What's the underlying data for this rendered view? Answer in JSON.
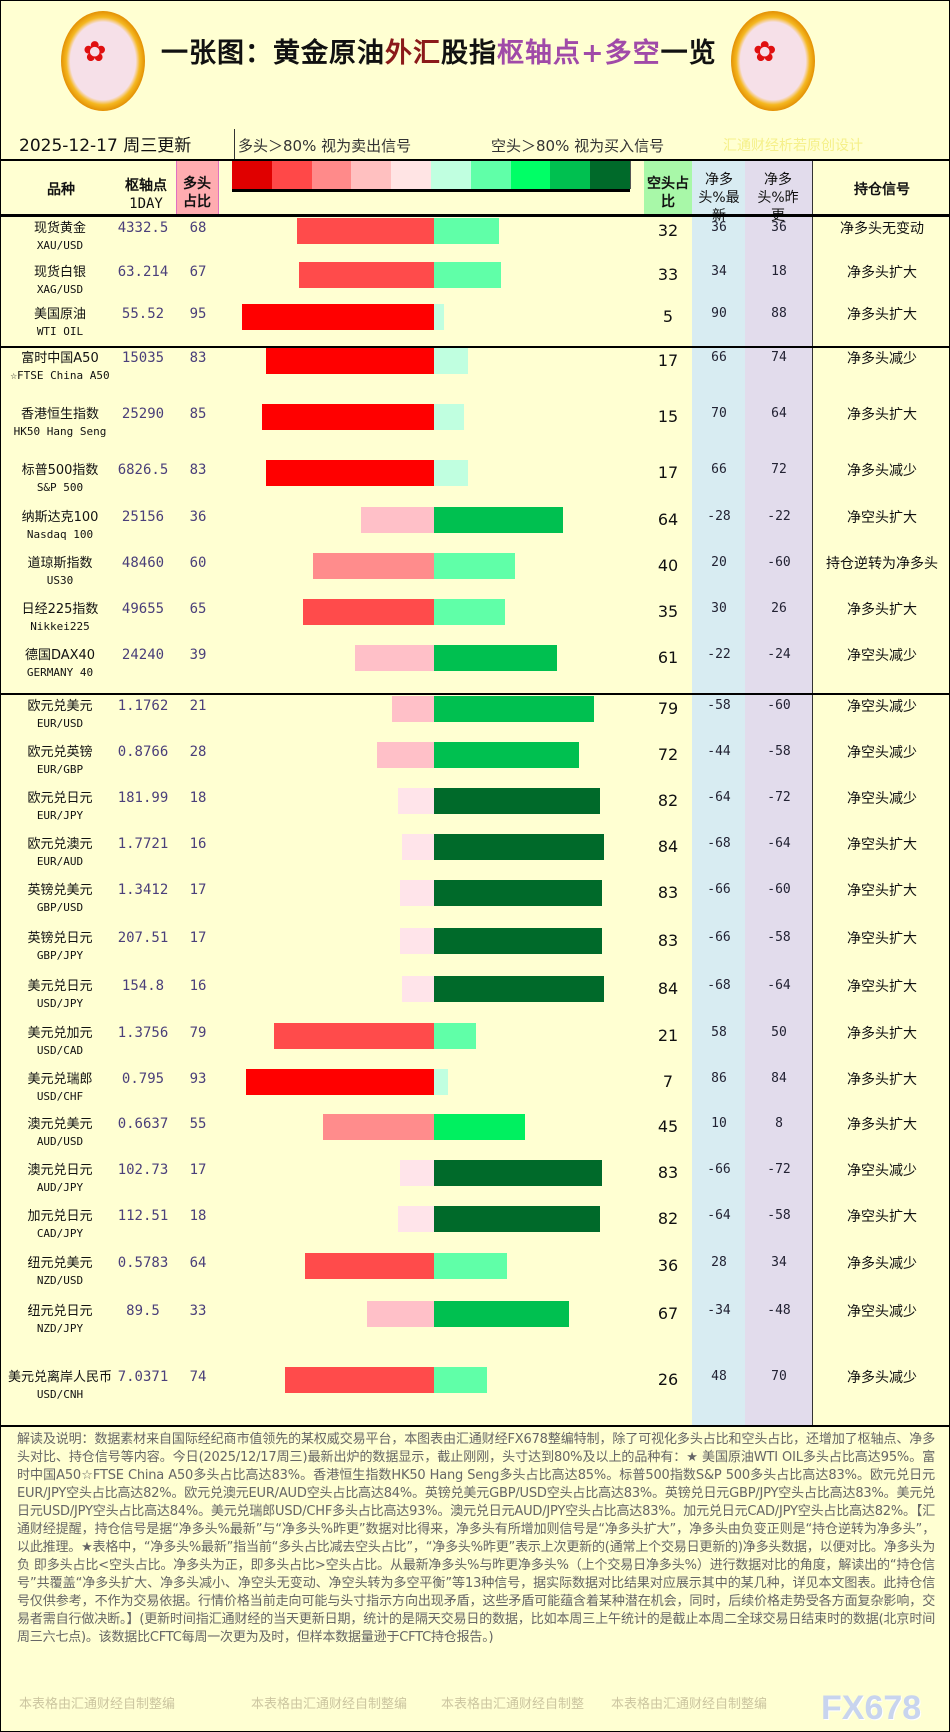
{
  "header": {
    "title_parts": [
      {
        "text": "一张图：黄金原油",
        "color": "#111111"
      },
      {
        "text": "外汇",
        "color": "#8b1a1a"
      },
      {
        "text": "股指",
        "color": "#111111"
      },
      {
        "text": "枢轴点+多空",
        "color": "#a04aa8"
      },
      {
        "text": "一览",
        "color": "#111111"
      }
    ],
    "date": "2025-12-17  周三更新",
    "legend_long": "多头＞80% 视为卖出信号",
    "legend_short": "空头＞80% 视为买入信号",
    "credit": "汇通财经析若原创设计",
    "legend_colors": [
      "#e00000",
      "#ff4848",
      "#ff8a8a",
      "#ffc0c0",
      "#ffe4e4",
      "#c0ffe0",
      "#60ffa8",
      "#00ff66",
      "#00c050",
      "#006a2a"
    ]
  },
  "columns": {
    "name": "品种",
    "pivot": "枢轴点",
    "pivot_sub": "1DAY",
    "long": "多头占比",
    "short": "空头占比",
    "net_latest": "净多头%最新",
    "net_prev": "净多头%昨更",
    "signal": "持仓信号"
  },
  "rows": [
    {
      "name": "现货黄金",
      "code": "XAU/USD",
      "pivot": "4332.5",
      "long": 68,
      "short": 32,
      "net": 36,
      "prev": 36,
      "signal": "净多头无变动"
    },
    {
      "name": "现货白银",
      "code": "XAG/USD",
      "pivot": "63.214",
      "long": 67,
      "short": 33,
      "net": 34,
      "prev": 18,
      "signal": "净多头扩大"
    },
    {
      "name": "美国原油",
      "code": "WTI OIL",
      "pivot": "55.52",
      "long": 95,
      "short": 5,
      "net": 90,
      "prev": 88,
      "signal": "净多头扩大"
    },
    {
      "name": "富时中国A50",
      "code": "☆FTSE China A50",
      "pivot": "15035",
      "long": 83,
      "short": 17,
      "net": 66,
      "prev": 74,
      "signal": "净多头减少"
    },
    {
      "name": "香港恒生指数",
      "code": "HK50 Hang Seng",
      "pivot": "25290",
      "long": 85,
      "short": 15,
      "net": 70,
      "prev": 64,
      "signal": "净多头扩大"
    },
    {
      "name": "标普500指数",
      "code": "S&P 500",
      "pivot": "6826.5",
      "long": 83,
      "short": 17,
      "net": 66,
      "prev": 72,
      "signal": "净多头减少"
    },
    {
      "name": "纳斯达克100",
      "code": "Nasdaq 100",
      "pivot": "25156",
      "long": 36,
      "short": 64,
      "net": -28,
      "prev": -22,
      "signal": "净空头扩大"
    },
    {
      "name": "道琼斯指数",
      "code": "US30",
      "pivot": "48460",
      "long": 60,
      "short": 40,
      "net": 20,
      "prev": -60,
      "signal": "持仓逆转为净多头"
    },
    {
      "name": "日经225指数",
      "code": "Nikkei225",
      "pivot": "49655",
      "long": 65,
      "short": 35,
      "net": 30,
      "prev": 26,
      "signal": "净多头扩大"
    },
    {
      "name": "德国DAX40",
      "code": "GERMANY 40",
      "pivot": "24240",
      "long": 39,
      "short": 61,
      "net": -22,
      "prev": -24,
      "signal": "净空头减少"
    },
    {
      "name": "欧元兑美元",
      "code": "EUR/USD",
      "pivot": "1.1762",
      "long": 21,
      "short": 79,
      "net": -58,
      "prev": -60,
      "signal": "净空头减少"
    },
    {
      "name": "欧元兑英镑",
      "code": "EUR/GBP",
      "pivot": "0.8766",
      "long": 28,
      "short": 72,
      "net": -44,
      "prev": -58,
      "signal": "净空头减少"
    },
    {
      "name": "欧元兑日元",
      "code": "EUR/JPY",
      "pivot": "181.99",
      "long": 18,
      "short": 82,
      "net": -64,
      "prev": -72,
      "signal": "净空头减少"
    },
    {
      "name": "欧元兑澳元",
      "code": "EUR/AUD",
      "pivot": "1.7721",
      "long": 16,
      "short": 84,
      "net": -68,
      "prev": -64,
      "signal": "净空头扩大"
    },
    {
      "name": "英镑兑美元",
      "code": "GBP/USD",
      "pivot": "1.3412",
      "long": 17,
      "short": 83,
      "net": -66,
      "prev": -60,
      "signal": "净空头扩大"
    },
    {
      "name": "英镑兑日元",
      "code": "GBP/JPY",
      "pivot": "207.51",
      "long": 17,
      "short": 83,
      "net": -66,
      "prev": -58,
      "signal": "净空头扩大"
    },
    {
      "name": "美元兑日元",
      "code": "USD/JPY",
      "pivot": "154.8",
      "long": 16,
      "short": 84,
      "net": -68,
      "prev": -64,
      "signal": "净空头扩大"
    },
    {
      "name": "美元兑加元",
      "code": "USD/CAD",
      "pivot": "1.3756",
      "long": 79,
      "short": 21,
      "net": 58,
      "prev": 50,
      "signal": "净多头扩大"
    },
    {
      "name": "美元兑瑞郎",
      "code": "USD/CHF",
      "pivot": "0.795",
      "long": 93,
      "short": 7,
      "net": 86,
      "prev": 84,
      "signal": "净多头扩大"
    },
    {
      "name": "澳元兑美元",
      "code": "AUD/USD",
      "pivot": "0.6637",
      "long": 55,
      "short": 45,
      "net": 10,
      "prev": 8,
      "signal": "净多头扩大"
    },
    {
      "name": "澳元兑日元",
      "code": "AUD/JPY",
      "pivot": "102.73",
      "long": 17,
      "short": 83,
      "net": -66,
      "prev": -72,
      "signal": "净空头减少"
    },
    {
      "name": "加元兑日元",
      "code": "CAD/JPY",
      "pivot": "112.51",
      "long": 18,
      "short": 82,
      "net": -64,
      "prev": -58,
      "signal": "净空头扩大"
    },
    {
      "name": "纽元兑美元",
      "code": "NZD/USD",
      "pivot": "0.5783",
      "long": 64,
      "short": 36,
      "net": 28,
      "prev": 34,
      "signal": "净多头减少"
    },
    {
      "name": "纽元兑日元",
      "code": "NZD/JPY",
      "pivot": "89.5",
      "long": 33,
      "short": 67,
      "net": -34,
      "prev": -48,
      "signal": "净空头减少"
    },
    {
      "name": "美元兑离岸人民币",
      "code": "USD/CNH",
      "pivot": "7.0371",
      "long": 74,
      "short": 26,
      "net": 48,
      "prev": 70,
      "signal": "净多头减少"
    }
  ],
  "footer": {
    "text": "解读及说明：数据素材来自国际经纪商市值领先的某权威交易平台，本图表由汇通财经FX678整编特制，除了可视化多头占比和空头占比，还增加了枢轴点、净多头对比、持仓信号等内容。今日(2025/12/17周三)最新出炉的数据显示，截止刚刚，头寸达到80%及以上的品种有：★ 美国原油WTI OIL多头占比高达95%。富时中国A50☆FTSE China A50多头占比高达83%。香港恒生指数HK50 Hang Seng多头占比高达85%。标普500指数S&P 500多头占比高达83%。欧元兑日元EUR/JPY空头占比高达82%。欧元兑澳元EUR/AUD空头占比高达84%。英镑兑美元GBP/USD空头占比高达83%。英镑兑日元GBP/JPY空头占比高达83%。美元兑日元USD/JPY空头占比高达84%。美元兑瑞郎USD/CHF多头占比高达93%。澳元兑日元AUD/JPY空头占比高达83%。加元兑日元CAD/JPY空头占比高达82%。【汇通财经提醒，持仓信号是据“净多头%最新”与“净多头%昨更”数据对比得来，净多头有所增加则信号是“净多头扩大”，净多头由负变正则是“持仓逆转为净多头”，以此推理。★表格中，“净多头%最新”指当前“多头占比减去空头占比”，“净多头%昨更”表示上次更新的(通常上个交易日更新的)净多头数据，以便对比。净多头为负 即多头占比<空头占比。净多头为正，即多头占比>空头占比。从最新净多头%与昨更净多头%（上个交易日净多头%）进行数据对比的角度，解读出的“持仓信号”共覆盖“净多头扩大、净多头减小、净空头无变动、净空头转为多空平衡”等13种信号，据实际数据对比结果对应展示其中的某几种，详见本文图表。此持仓信号仅供参考，不作为交易依据。行情价格当前走向可能与头寸指示方向出现矛盾，这些矛盾可能蕴含着某种潜在机会，同时，后续价格走势受各方面复杂影响，交易者需自行做决断。】(更新时间指汇通财经的当天更新日期，统计的是隔天交易日的数据，比如本周三上午统计的是截止本周二全球交易日结束时的数据(北京时间周三六七点)。该数据比CFTC每周一次更为及时，但样本数据量逊于CFTC持仓报告。)",
    "watermarks": [
      "本表格由汇通财经自制整编",
      "本表格由汇通财经自制整编",
      "本表格由汇通财经自制整",
      "本表格由汇通财经自制整编"
    ],
    "brand": "FX678"
  }
}
